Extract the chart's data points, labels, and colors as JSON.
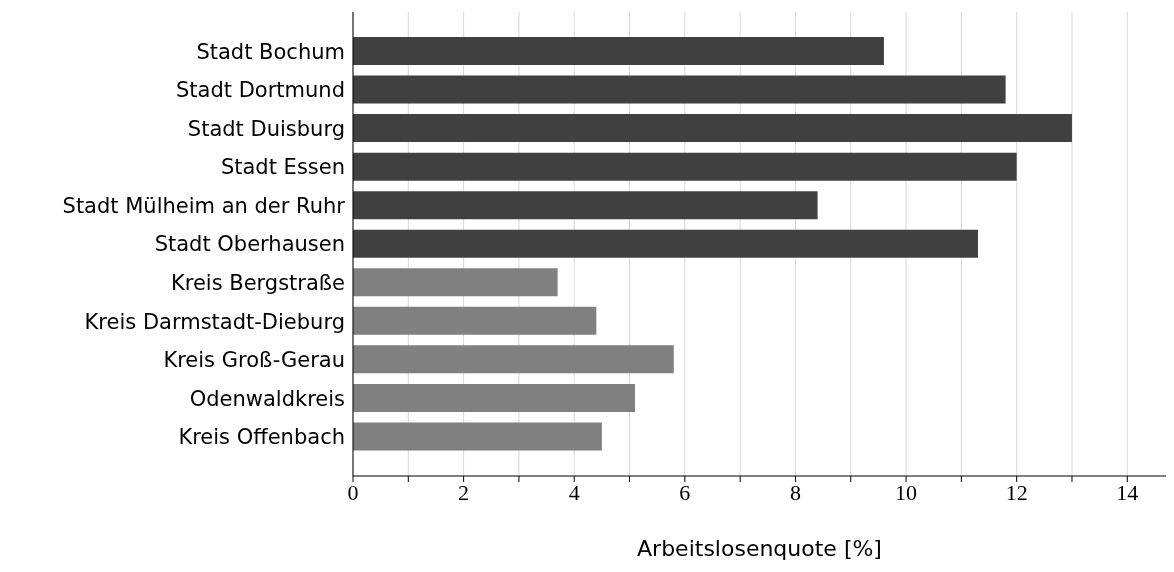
{
  "chart_data": {
    "type": "bar",
    "orientation": "horizontal",
    "xlabel": "Arbeitslosenquote [%]",
    "categories": [
      "Stadt Bochum",
      "Stadt Dortmund",
      "Stadt Duisburg",
      "Stadt Essen",
      "Stadt Mülheim an der Ruhr",
      "Stadt Oberhausen",
      "Kreis Bergstraße",
      "Kreis Darmstadt-Dieburg",
      "Kreis Groß-Gerau",
      "Odenwaldkreis",
      "Kreis Offenbach"
    ],
    "values": [
      9.6,
      11.8,
      13.0,
      12.0,
      8.4,
      11.3,
      3.7,
      4.4,
      5.8,
      5.1,
      4.5
    ],
    "colors": [
      "#404040",
      "#404040",
      "#404040",
      "#404040",
      "#404040",
      "#404040",
      "#808080",
      "#808080",
      "#808080",
      "#808080",
      "#808080"
    ],
    "xlim": [
      0,
      14.7
    ],
    "xticks": [
      0,
      {
        "value": 1,
        "label": null
      },
      2,
      {
        "value": 3,
        "label": null
      },
      4,
      {
        "value": 5,
        "label": null
      },
      6,
      {
        "value": 7,
        "label": null
      },
      8,
      {
        "value": 9,
        "label": null
      },
      10,
      {
        "value": 11,
        "label": null
      },
      12,
      {
        "value": 13,
        "label": null
      },
      14
    ],
    "grid": "x",
    "legend": false
  }
}
